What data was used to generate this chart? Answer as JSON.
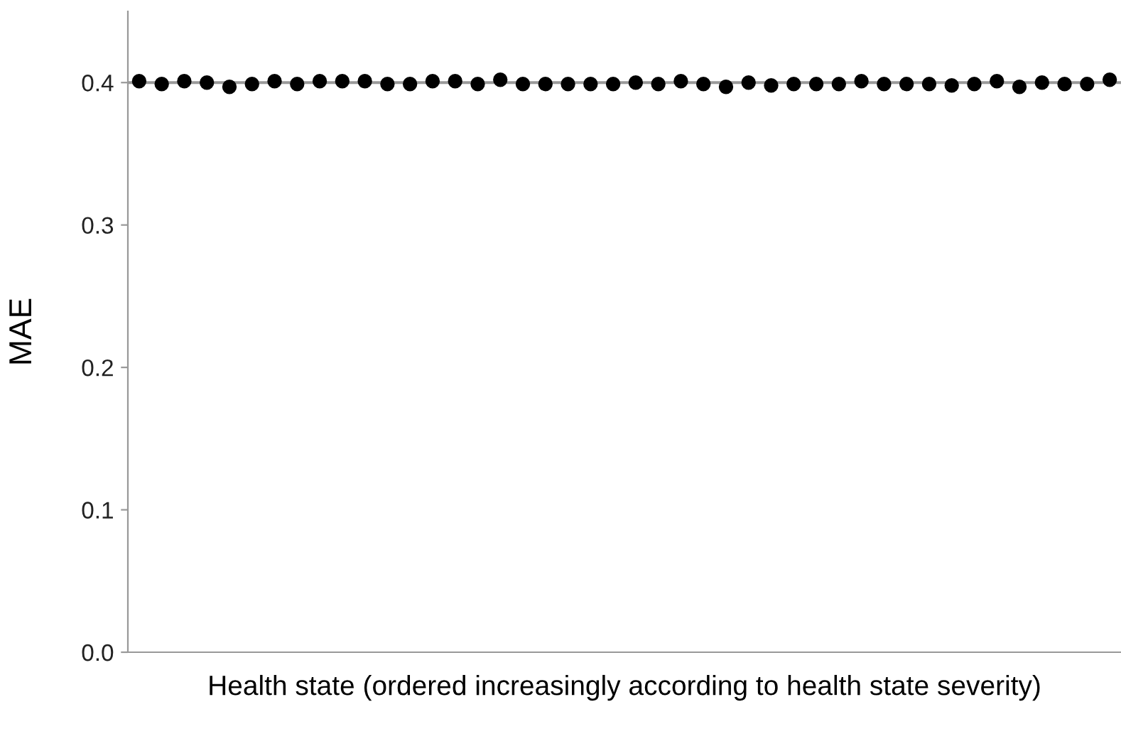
{
  "chart_data": {
    "type": "scatter",
    "xlabel": "Health state (ordered increasingly according to health state severity)",
    "ylabel": "MAE",
    "categories": [
      null,
      null,
      null,
      null,
      null,
      null,
      null,
      null,
      null,
      null,
      null,
      null,
      null,
      null,
      null,
      null,
      null,
      null,
      null,
      null,
      null,
      null,
      null,
      null,
      null,
      null,
      null,
      null,
      null,
      null,
      null,
      null,
      null,
      null,
      null,
      null,
      null,
      null,
      null,
      null,
      null,
      null,
      null,
      null
    ],
    "series": [
      {
        "color": "#000000",
        "values": [
          0.401,
          0.399,
          0.401,
          0.4,
          0.397,
          0.399,
          0.401,
          0.399,
          0.401,
          0.401,
          0.401,
          0.399,
          0.399,
          0.401,
          0.401,
          0.399,
          0.402,
          0.399,
          0.399,
          0.399,
          0.399,
          0.399,
          0.4,
          0.399,
          0.401,
          0.399,
          0.397,
          0.4,
          0.398,
          0.399,
          0.399,
          0.399,
          0.401,
          0.399,
          0.399,
          0.399,
          0.398,
          0.399,
          0.401,
          0.397,
          0.4,
          0.399,
          0.399,
          0.402
        ]
      }
    ],
    "ylim": [
      0,
      0.45
    ],
    "yticks": [
      {
        "value": 0,
        "label": "0.0"
      },
      0.1,
      0.2,
      0.3,
      0.4
    ],
    "ref_lines": [
      {
        "axis": "y",
        "value": 0.4,
        "color": "#999999"
      }
    ],
    "marker": "circle",
    "grid": false,
    "legend": false
  }
}
